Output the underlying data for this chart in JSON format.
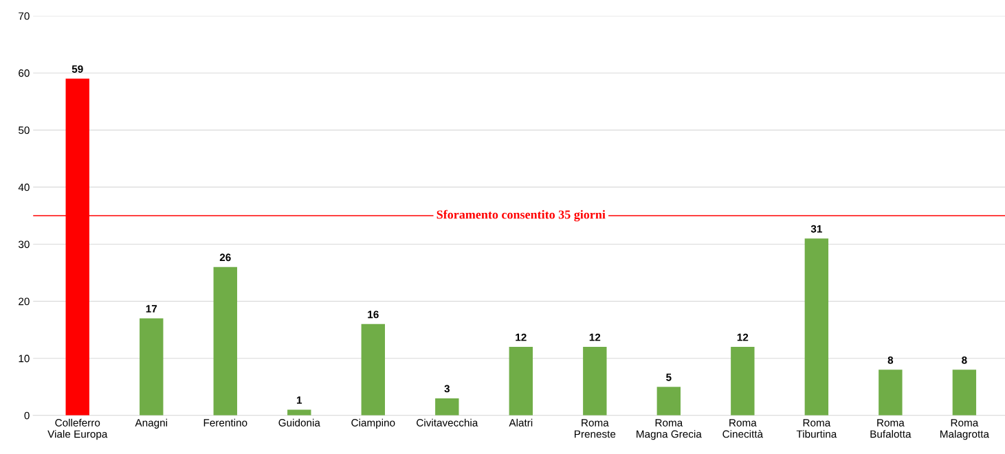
{
  "chart_data": {
    "type": "bar",
    "categories": [
      "Colleferro\nViale Europa",
      "Anagni",
      "Ferentino",
      "Guidonia",
      "Ciampino",
      "Civitavecchia",
      "Alatri",
      "Roma\nPreneste",
      "Roma\nMagna Grecia",
      "Roma\nCinecittà",
      "Roma\nTiburtina",
      "Roma\nBufalotta",
      "Roma\nMalagrotta"
    ],
    "values": [
      59,
      17,
      26,
      1,
      16,
      3,
      12,
      12,
      5,
      12,
      31,
      8,
      8
    ],
    "colors": [
      "#ff0000",
      "#70ad47",
      "#70ad47",
      "#70ad47",
      "#70ad47",
      "#70ad47",
      "#70ad47",
      "#70ad47",
      "#70ad47",
      "#70ad47",
      "#70ad47",
      "#70ad47",
      "#70ad47"
    ],
    "ylim": [
      0,
      70
    ],
    "yticks": [
      0,
      10,
      20,
      30,
      40,
      50,
      60,
      70
    ],
    "grid": "y",
    "data_labels": true,
    "ref_lines": [
      {
        "axis": "y",
        "value": 35,
        "label": "Sforamento consentito 35 giorni",
        "color": "#ff0000"
      }
    ]
  }
}
